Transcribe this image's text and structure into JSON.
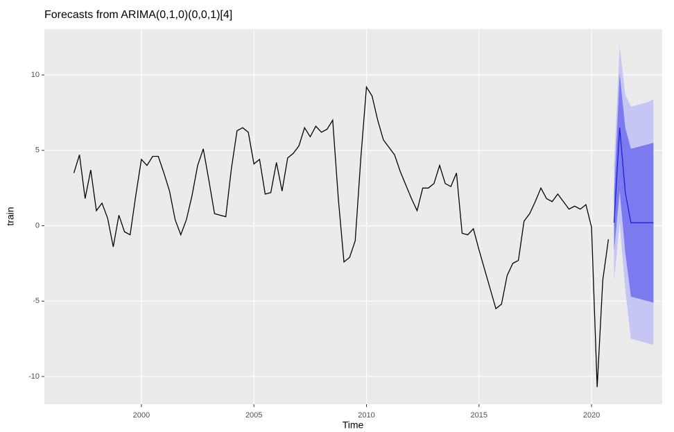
{
  "chart_data": {
    "type": "line",
    "title": "Forecasts from ARIMA(0,1,0)(0,0,1)[4]",
    "xlabel": "Time",
    "ylabel": "train",
    "xlim": [
      1995.69,
      2023.14
    ],
    "ylim": [
      -11.84,
      13.04
    ],
    "xticks": [
      2000,
      2005,
      2010,
      2015,
      2020
    ],
    "yticks": [
      -10,
      -5,
      0,
      5,
      10
    ],
    "grid": true,
    "series": [
      {
        "color": "#000000",
        "x": [
          1997,
          1997.25,
          1997.5,
          1997.75,
          1998,
          1998.25,
          1998.5,
          1998.75,
          1999,
          1999.25,
          1999.5,
          1999.75,
          2000,
          2000.25,
          2000.5,
          2000.75,
          2001,
          2001.25,
          2001.5,
          2001.75,
          2002,
          2002.25,
          2002.5,
          2002.75,
          2003,
          2003.25,
          2003.5,
          2003.75,
          2004,
          2004.25,
          2004.5,
          2004.75,
          2005,
          2005.25,
          2005.5,
          2005.75,
          2006,
          2006.25,
          2006.5,
          2006.75,
          2007,
          2007.25,
          2007.5,
          2007.75,
          2008,
          2008.25,
          2008.5,
          2008.75,
          2009,
          2009.25,
          2009.5,
          2009.75,
          2010,
          2010.25,
          2010.5,
          2010.75,
          2011,
          2011.25,
          2011.5,
          2011.75,
          2012,
          2012.25,
          2012.5,
          2012.75,
          2013,
          2013.25,
          2013.5,
          2013.75,
          2014,
          2014.25,
          2014.5,
          2014.75,
          2015,
          2015.25,
          2015.5,
          2015.75,
          2016,
          2016.25,
          2016.5,
          2016.75,
          2017,
          2017.25,
          2017.5,
          2017.75,
          2018,
          2018.25,
          2018.5,
          2018.75,
          2019,
          2019.25,
          2019.5,
          2019.75,
          2020,
          2020.25,
          2020.5,
          2020.75
        ],
        "values": [
          3.5,
          4.7,
          1.8,
          3.7,
          1.0,
          1.5,
          0.5,
          -1.4,
          0.7,
          -0.4,
          -0.6,
          2.0,
          4.4,
          4.0,
          4.6,
          4.6,
          3.5,
          2.3,
          0.4,
          -0.6,
          0.4,
          2.0,
          4.0,
          5.1,
          3.0,
          0.8,
          0.7,
          0.6,
          3.8,
          6.3,
          6.5,
          6.2,
          4.1,
          4.4,
          2.1,
          2.2,
          4.2,
          2.3,
          4.5,
          4.8,
          5.3,
          6.5,
          5.9,
          6.6,
          6.2,
          6.4,
          7.0,
          1.8,
          -2.4,
          -2.1,
          -1.0,
          4.5,
          9.2,
          8.6,
          7.0,
          5.7,
          5.2,
          4.7,
          3.6,
          2.7,
          1.8,
          1.0,
          2.5,
          2.5,
          2.8,
          4.0,
          2.8,
          2.6,
          3.5,
          -0.5,
          -0.6,
          -0.2,
          -1.6,
          -2.9,
          -4.2,
          -5.5,
          -5.2,
          -3.3,
          -2.5,
          -2.3,
          0.3,
          0.8,
          1.6,
          2.5,
          1.8,
          1.6,
          2.1,
          1.6,
          1.1,
          1.3,
          1.1,
          1.4,
          -0.1,
          -10.7,
          -3.6,
          -0.9
        ]
      }
    ],
    "forecast": {
      "color": "#1f1fd6",
      "color80": "#7b7bef",
      "color95": "#c6c6f4",
      "x": [
        2021,
        2021.25,
        2021.5,
        2021.75,
        2022,
        2022.25,
        2022.5,
        2022.75
      ],
      "mean": [
        0.2,
        6.5,
        2.2,
        0.2,
        0.2,
        0.2,
        0.2,
        0.2
      ],
      "lo80": [
        -1.7,
        2.3,
        -1.8,
        -4.7,
        -4.8,
        -4.9,
        -5.0,
        -5.1
      ],
      "hi80": [
        2.1,
        10.1,
        6.5,
        5.1,
        5.2,
        5.3,
        5.4,
        5.5
      ],
      "lo95": [
        -3.7,
        0.2,
        -4.3,
        -7.5,
        -7.6,
        -7.7,
        -7.8,
        -7.9
      ],
      "hi95": [
        4.1,
        11.9,
        8.7,
        7.9,
        8.0,
        8.1,
        8.2,
        8.4
      ]
    }
  }
}
